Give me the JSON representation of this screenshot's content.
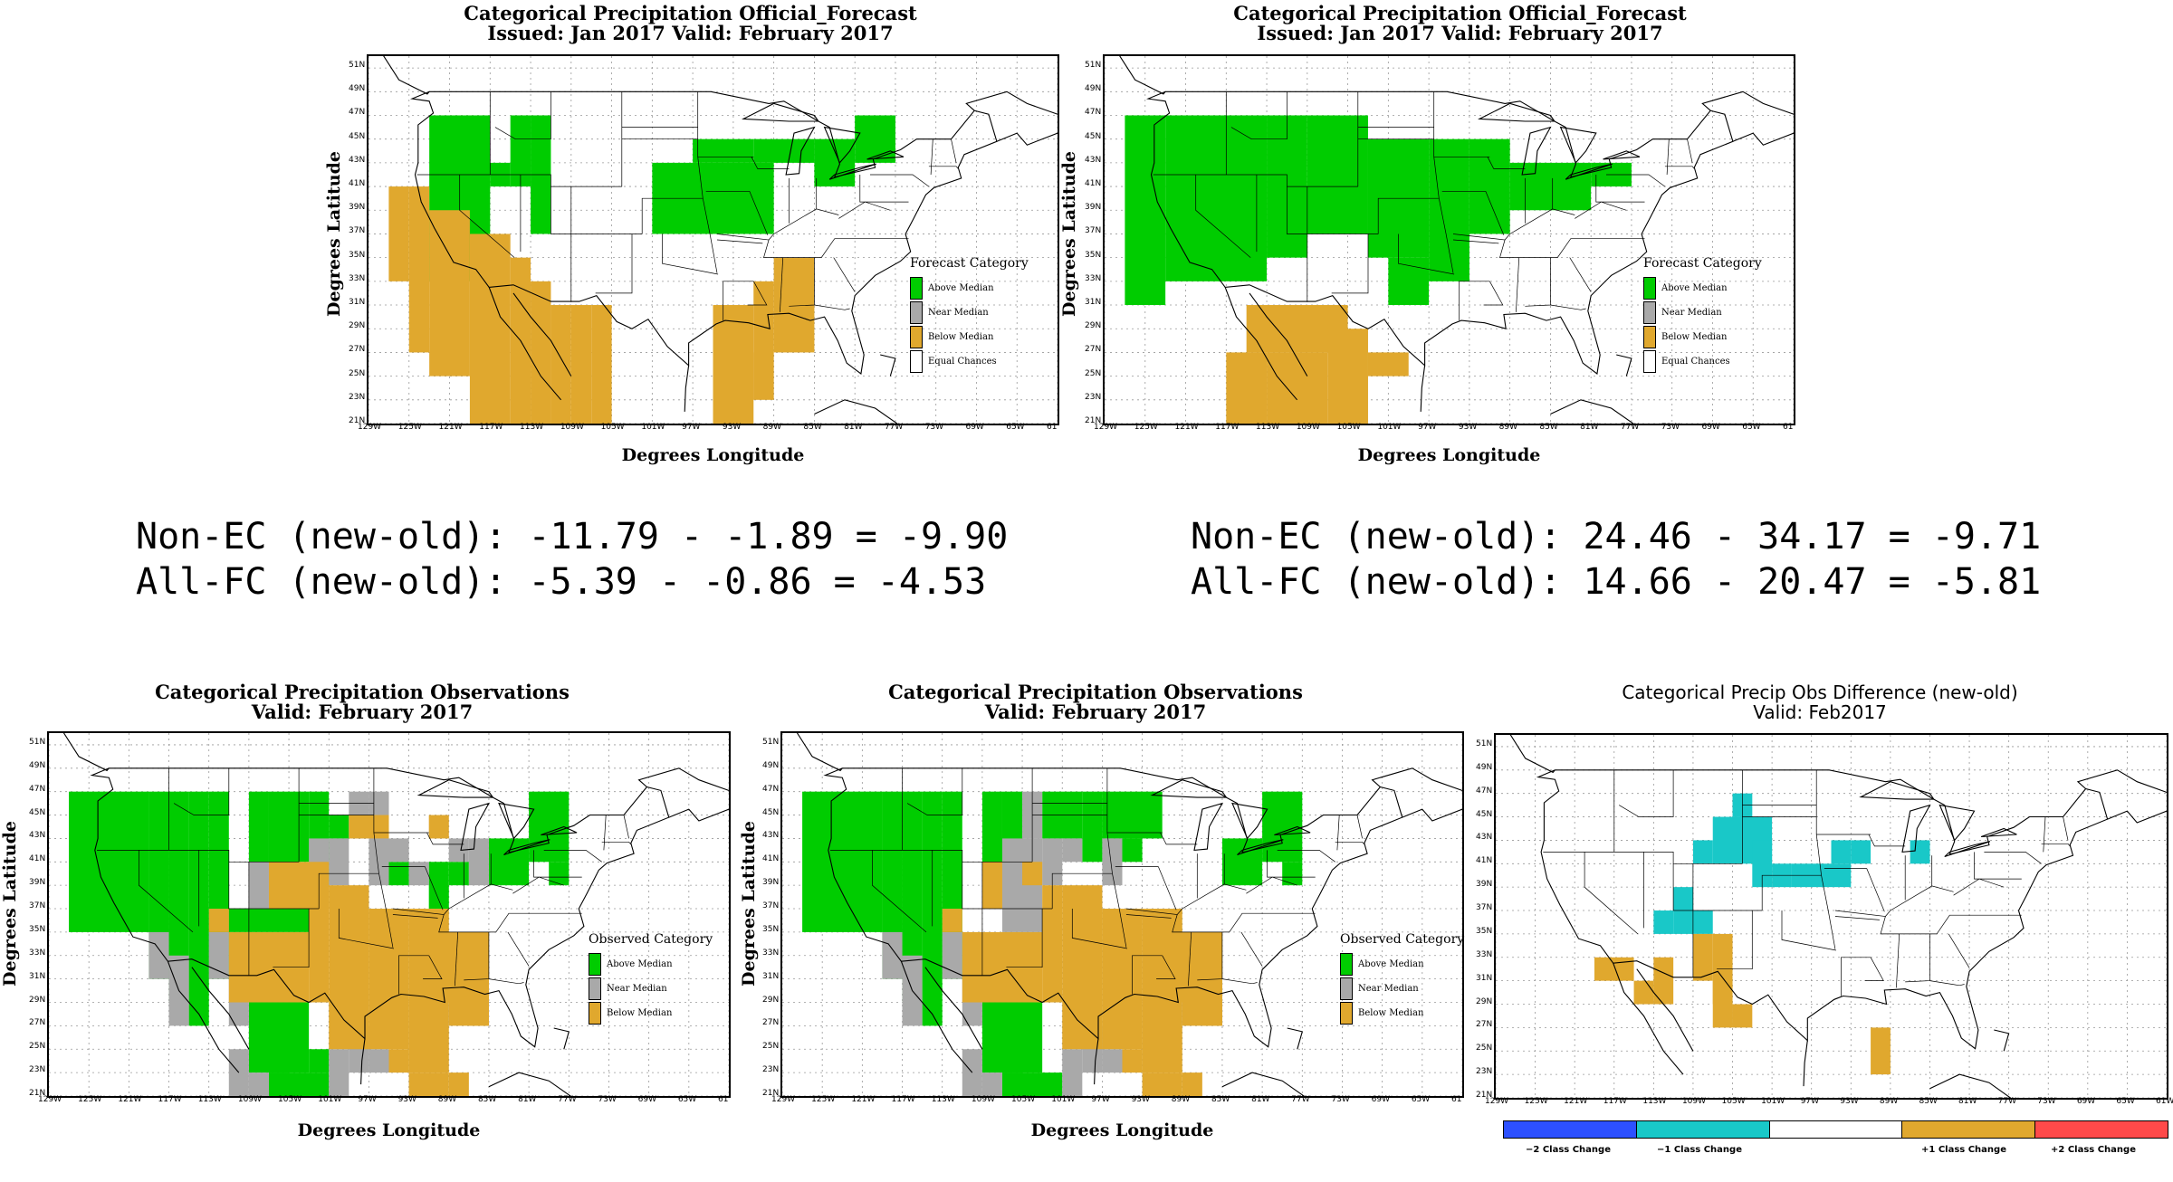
{
  "colors": {
    "above": "#00cc00",
    "near": "#a9a9a9",
    "below": "#e0a82e",
    "equal": "#ffffff",
    "m2": "#2d50ff",
    "m1": "#19c8c8",
    "p1": "#e0a82e",
    "p2": "#ff4a4a"
  },
  "lat_labels": [
    "51N",
    "49N",
    "47N",
    "45N",
    "43N",
    "41N",
    "39N",
    "37N",
    "35N",
    "33N",
    "31N",
    "29N",
    "27N",
    "25N",
    "23N",
    "21N"
  ],
  "lon_labels": [
    "129W",
    "125W",
    "121W",
    "117W",
    "113W",
    "109W",
    "105W",
    "101W",
    "97W",
    "93W",
    "89W",
    "85W",
    "81W",
    "77W",
    "73W",
    "69W",
    "65W",
    "61"
  ],
  "lon_labels_diff": [
    "129W",
    "125W",
    "121W",
    "117W",
    "113W",
    "109W",
    "105W",
    "101W",
    "97W",
    "93W",
    "89W",
    "85W",
    "81W",
    "77W",
    "73W",
    "69W",
    "65W",
    "61W"
  ],
  "axis": {
    "x": "Degrees Longitude",
    "y": "Degrees Latitude"
  },
  "panels": {
    "fc_old": {
      "title1": "Categorical Precipitation Official_Forecast",
      "title2": "Issued: Jan 2017 Valid: February 2017",
      "legend_title": "Forecast Category"
    },
    "fc_new": {
      "title1": "Categorical Precipitation Official_Forecast",
      "title2": "Issued: Jan 2017 Valid: February 2017",
      "legend_title": "Forecast Category"
    },
    "obs_old": {
      "title1": "Categorical Precipitation Observations",
      "title2": "Valid: February 2017",
      "legend_title": "Observed Category"
    },
    "obs_new": {
      "title1": "Categorical Precipitation Observations",
      "title2": "Valid: February 2017",
      "legend_title": "Observed Category"
    },
    "diff": {
      "title1": "Categorical Precip Obs Difference (new-old)",
      "title2": "Valid: Feb2017"
    }
  },
  "legend_fc": [
    "Above Median",
    "Near Median",
    "Below Median",
    "Equal Chances"
  ],
  "legend_obs": [
    "Above Median",
    "Near Median",
    "Below Median"
  ],
  "diff_legend": [
    "−2 Class Change",
    "−1 Class Change",
    "+1 Class Change",
    "+2 Class Change"
  ],
  "stats": {
    "left_line1": "Non-EC (new-old): -11.79 - -1.89 = -9.90",
    "left_line2": "All-FC (new-old): -5.39 - -0.86 = -4.53",
    "right_line1": "Non-EC (new-old): 24.46 - 34.17 = -9.71",
    "right_line2": "All-FC (new-old): 14.66 - 20.47 = -5.81"
  },
  "map_data": {
    "grid_origin": {
      "lon": -129,
      "lat": 51
    },
    "cell_deg": 2,
    "fc_old": {
      "A": [
        [
          3,
          6,
          2,
          9
        ],
        [
          6,
          7,
          4,
          5
        ],
        [
          7,
          8,
          2,
          5
        ],
        [
          8,
          9,
          2,
          7
        ],
        [
          14,
          20,
          4,
          7
        ],
        [
          16,
          19,
          3,
          4
        ],
        [
          19,
          22,
          3,
          4
        ],
        [
          22,
          24,
          3,
          5
        ],
        [
          24,
          26,
          2,
          4
        ]
      ],
      "B": [
        [
          1,
          2,
          5,
          9
        ],
        [
          2,
          3,
          5,
          12
        ],
        [
          3,
          5,
          6,
          13
        ],
        [
          5,
          7,
          7,
          15
        ],
        [
          7,
          8,
          8,
          15
        ],
        [
          8,
          9,
          9,
          15
        ],
        [
          9,
          10,
          10,
          18
        ],
        [
          10,
          11,
          10,
          16
        ],
        [
          11,
          12,
          10,
          15
        ],
        [
          17,
          19,
          10,
          15
        ],
        [
          19,
          20,
          9,
          14
        ],
        [
          20,
          22,
          8,
          12
        ],
        [
          18,
          19,
          12,
          14
        ]
      ]
    },
    "fc_new": {
      "A": [
        [
          1,
          3,
          2,
          10
        ],
        [
          3,
          8,
          2,
          9
        ],
        [
          8,
          10,
          2,
          8
        ],
        [
          10,
          13,
          2,
          7
        ],
        [
          13,
          16,
          3,
          8
        ],
        [
          16,
          18,
          3,
          9
        ],
        [
          18,
          20,
          3,
          7
        ],
        [
          20,
          24,
          4,
          6
        ],
        [
          24,
          26,
          4,
          5
        ],
        [
          14,
          16,
          8,
          10
        ]
      ],
      "B": [
        [
          7,
          12,
          10,
          12
        ],
        [
          6,
          8,
          12,
          15
        ],
        [
          8,
          11,
          12,
          16
        ],
        [
          11,
          13,
          11,
          15
        ],
        [
          13,
          15,
          12,
          13
        ],
        [
          11,
          12,
          16,
          17
        ]
      ]
    },
    "obs_old": {
      "A": [
        [
          1,
          5,
          2,
          8
        ],
        [
          5,
          6,
          2,
          10
        ],
        [
          6,
          7,
          2,
          11
        ],
        [
          7,
          8,
          2,
          12
        ],
        [
          8,
          9,
          2,
          10
        ],
        [
          10,
          11,
          2,
          5
        ],
        [
          11,
          13,
          2,
          5
        ],
        [
          9,
          13,
          7,
          8
        ],
        [
          13,
          14,
          2,
          6
        ],
        [
          14,
          15,
          3,
          4
        ],
        [
          17,
          18,
          5,
          6
        ],
        [
          19,
          20,
          5,
          7
        ],
        [
          20,
          21,
          5,
          6
        ],
        [
          22,
          24,
          4,
          6
        ],
        [
          24,
          26,
          2,
          5
        ],
        [
          25,
          26,
          5,
          6
        ],
        [
          10,
          13,
          11,
          14
        ],
        [
          11,
          12,
          14,
          15
        ],
        [
          13,
          14,
          13,
          14
        ],
        [
          11,
          14,
          14,
          16
        ]
      ],
      "G": [
        [
          5,
          6,
          8,
          10
        ],
        [
          6,
          7,
          9,
          12
        ],
        [
          8,
          9,
          8,
          10
        ],
        [
          9,
          10,
          10,
          12
        ],
        [
          10,
          11,
          5,
          7
        ],
        [
          13,
          14,
          4,
          6
        ],
        [
          14,
          15,
          4,
          6
        ],
        [
          15,
          16,
          2,
          4
        ],
        [
          16,
          17,
          2,
          6
        ],
        [
          17,
          18,
          4,
          5
        ],
        [
          18,
          19,
          5,
          6
        ],
        [
          20,
          21,
          4,
          5
        ],
        [
          21,
          22,
          4,
          6
        ],
        [
          9,
          10,
          13,
          16
        ],
        [
          10,
          11,
          14,
          16
        ],
        [
          13,
          14,
          15,
          17
        ],
        [
          14,
          15,
          13,
          15
        ],
        [
          15,
          16,
          12,
          14
        ],
        [
          16,
          17,
          13,
          14
        ],
        [
          19,
          20,
          11,
          12
        ],
        [
          21,
          22,
          8,
          9
        ]
      ],
      "B": [
        [
          8,
          9,
          7,
          8
        ],
        [
          9,
          13,
          8,
          11
        ],
        [
          11,
          14,
          5,
          7
        ],
        [
          13,
          14,
          6,
          11
        ],
        [
          14,
          16,
          6,
          13
        ],
        [
          16,
          18,
          7,
          13
        ],
        [
          18,
          20,
          7,
          14
        ],
        [
          15,
          17,
          3,
          4
        ],
        [
          19,
          22,
          8,
          11
        ],
        [
          20,
          22,
          10,
          12
        ],
        [
          18,
          20,
          14,
          16
        ],
        [
          21,
          22,
          11,
          12
        ],
        [
          20,
          21,
          14,
          16
        ],
        [
          19,
          20,
          3,
          4
        ],
        [
          17,
          18,
          13,
          14
        ]
      ]
    },
    "obs_new": {
      "A": [
        [
          1,
          5,
          2,
          8
        ],
        [
          5,
          6,
          2,
          10
        ],
        [
          6,
          7,
          2,
          11
        ],
        [
          7,
          8,
          2,
          12
        ],
        [
          8,
          9,
          2,
          10
        ],
        [
          10,
          11,
          2,
          5
        ],
        [
          11,
          12,
          2,
          5
        ],
        [
          13,
          15,
          2,
          4
        ],
        [
          15,
          16,
          2,
          5
        ],
        [
          16,
          19,
          2,
          4
        ],
        [
          17,
          18,
          4,
          5
        ],
        [
          22,
          24,
          4,
          6
        ],
        [
          24,
          26,
          2,
          5
        ],
        [
          25,
          26,
          5,
          6
        ],
        [
          10,
          13,
          11,
          14
        ],
        [
          11,
          12,
          14,
          15
        ],
        [
          11,
          14,
          14,
          16
        ]
      ],
      "G": [
        [
          5,
          6,
          8,
          10
        ],
        [
          6,
          7,
          9,
          12
        ],
        [
          8,
          9,
          8,
          10
        ],
        [
          9,
          10,
          10,
          12
        ],
        [
          11,
          13,
          4,
          8
        ],
        [
          12,
          13,
          2,
          4
        ],
        [
          13,
          14,
          4,
          6
        ],
        [
          14,
          15,
          4,
          5
        ],
        [
          16,
          17,
          4,
          6
        ],
        [
          9,
          10,
          13,
          16
        ],
        [
          10,
          11,
          14,
          16
        ],
        [
          13,
          14,
          15,
          17
        ],
        [
          14,
          15,
          13,
          15
        ],
        [
          15,
          16,
          12,
          14
        ],
        [
          16,
          17,
          13,
          14
        ],
        [
          19,
          20,
          11,
          12
        ],
        [
          21,
          22,
          8,
          9
        ]
      ],
      "B": [
        [
          8,
          9,
          7,
          8
        ],
        [
          9,
          13,
          8,
          11
        ],
        [
          13,
          14,
          6,
          11
        ],
        [
          14,
          16,
          6,
          13
        ],
        [
          16,
          18,
          7,
          13
        ],
        [
          18,
          20,
          7,
          14
        ],
        [
          19,
          22,
          8,
          11
        ],
        [
          20,
          22,
          10,
          12
        ],
        [
          18,
          20,
          14,
          16
        ],
        [
          21,
          22,
          11,
          12
        ],
        [
          20,
          21,
          14,
          16
        ],
        [
          17,
          18,
          13,
          14
        ],
        [
          10,
          11,
          5,
          7
        ],
        [
          12,
          13,
          5,
          6
        ]
      ]
    },
    "diff": {
      "m1": [
        [
          10,
          11,
          4,
          5
        ],
        [
          11,
          14,
          3,
          5
        ],
        [
          12,
          13,
          2,
          3
        ],
        [
          13,
          14,
          4,
          6
        ],
        [
          14,
          15,
          5,
          6
        ],
        [
          15,
          18,
          5,
          6
        ],
        [
          17,
          18,
          4,
          5
        ],
        [
          18,
          19,
          4,
          5
        ],
        [
          21,
          22,
          4,
          5
        ],
        [
          8,
          9,
          7,
          8
        ],
        [
          9,
          10,
          6,
          8
        ],
        [
          10,
          11,
          7,
          8
        ]
      ],
      "p1": [
        [
          5,
          7,
          9,
          10
        ],
        [
          7,
          8,
          10,
          11
        ],
        [
          8,
          9,
          9,
          11
        ],
        [
          10,
          11,
          8,
          10
        ],
        [
          11,
          12,
          8,
          11
        ],
        [
          11,
          12,
          10,
          12
        ],
        [
          12,
          13,
          11,
          12
        ],
        [
          19,
          20,
          12,
          14
        ]
      ]
    }
  }
}
